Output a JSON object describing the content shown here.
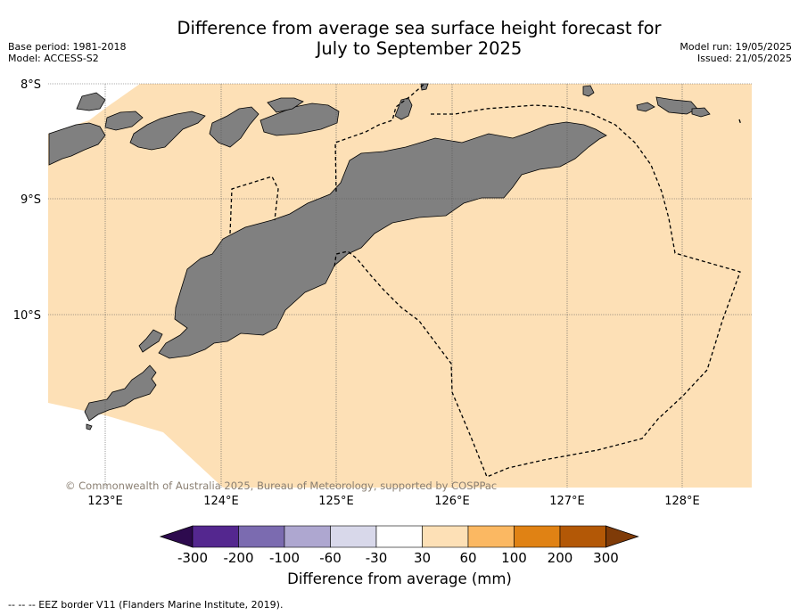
{
  "title_line1": "Difference from average sea surface height forecast for",
  "title_line2": "July to September 2025",
  "base_period": "Base period: 1981-2018",
  "model": "Model: ACCESS-S2",
  "model_run": "Model run: 19/05/2025",
  "issued": "Issued: 21/05/2025",
  "copyright": "© Commonwealth of Australia 2025, Bureau of Meteorology, supported by COSPPac",
  "lat_labels": [
    "8°S",
    "9°S",
    "10°S"
  ],
  "lon_labels": [
    "123°E",
    "124°E",
    "125°E",
    "126°E",
    "127°E",
    "128°E"
  ],
  "colorbar": {
    "label": "Difference from average (mm)",
    "ticks": [
      "-300",
      "-200",
      "-100",
      "-60",
      "-30",
      "30",
      "60",
      "100",
      "200",
      "300"
    ],
    "colors": [
      "#2d0a4e",
      "#54278f",
      "#7b6bb0",
      "#aea7d0",
      "#d8d8ea",
      "#ffffff",
      "#fde0b6",
      "#fbb862",
      "#e08214",
      "#b35806",
      "#7f3b08"
    ]
  },
  "legend_note": "--  --  -- EEZ border V11 (Flanders Marine Institute, 2019).",
  "colors": {
    "ocean": "#fde0b6",
    "land": "#808080"
  }
}
